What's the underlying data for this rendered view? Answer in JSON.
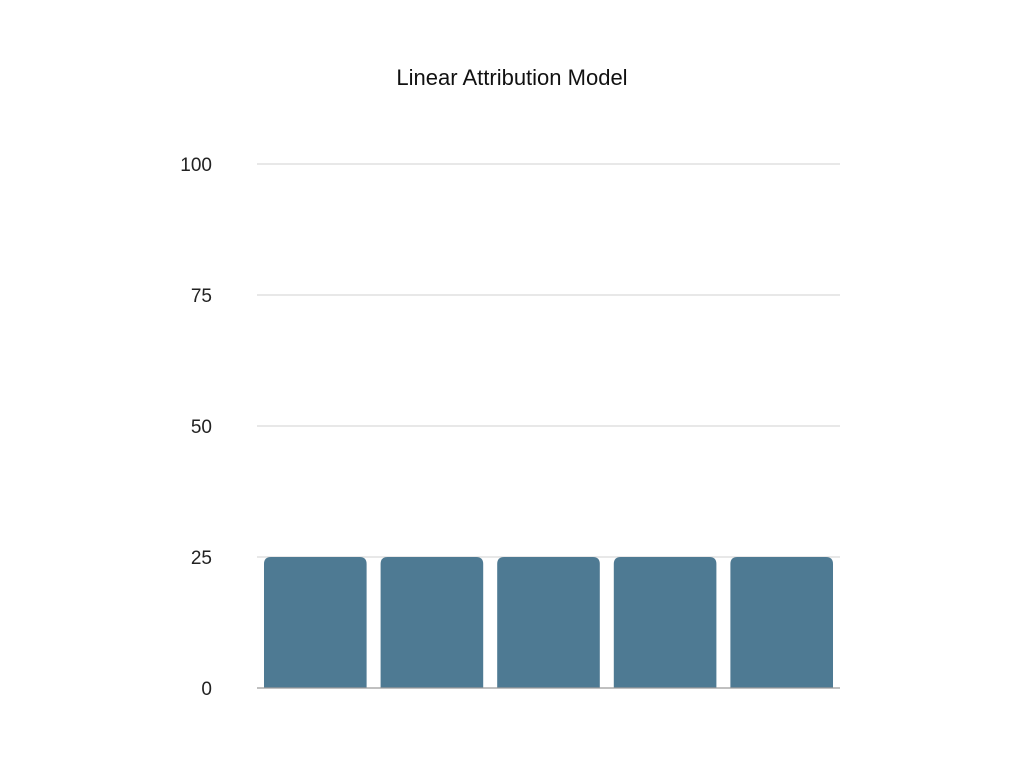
{
  "chart_data": {
    "type": "bar",
    "title": "Linear Attribution Model",
    "categories": [
      "",
      "",
      "",
      "",
      ""
    ],
    "values": [
      25,
      25,
      25,
      25,
      25
    ],
    "xlabel": "",
    "ylabel": "",
    "ylim": [
      0,
      100
    ],
    "yticks": [
      0,
      25,
      50,
      75,
      100
    ],
    "grid": true,
    "legend": "none",
    "bar_color": "#4e7a93"
  }
}
